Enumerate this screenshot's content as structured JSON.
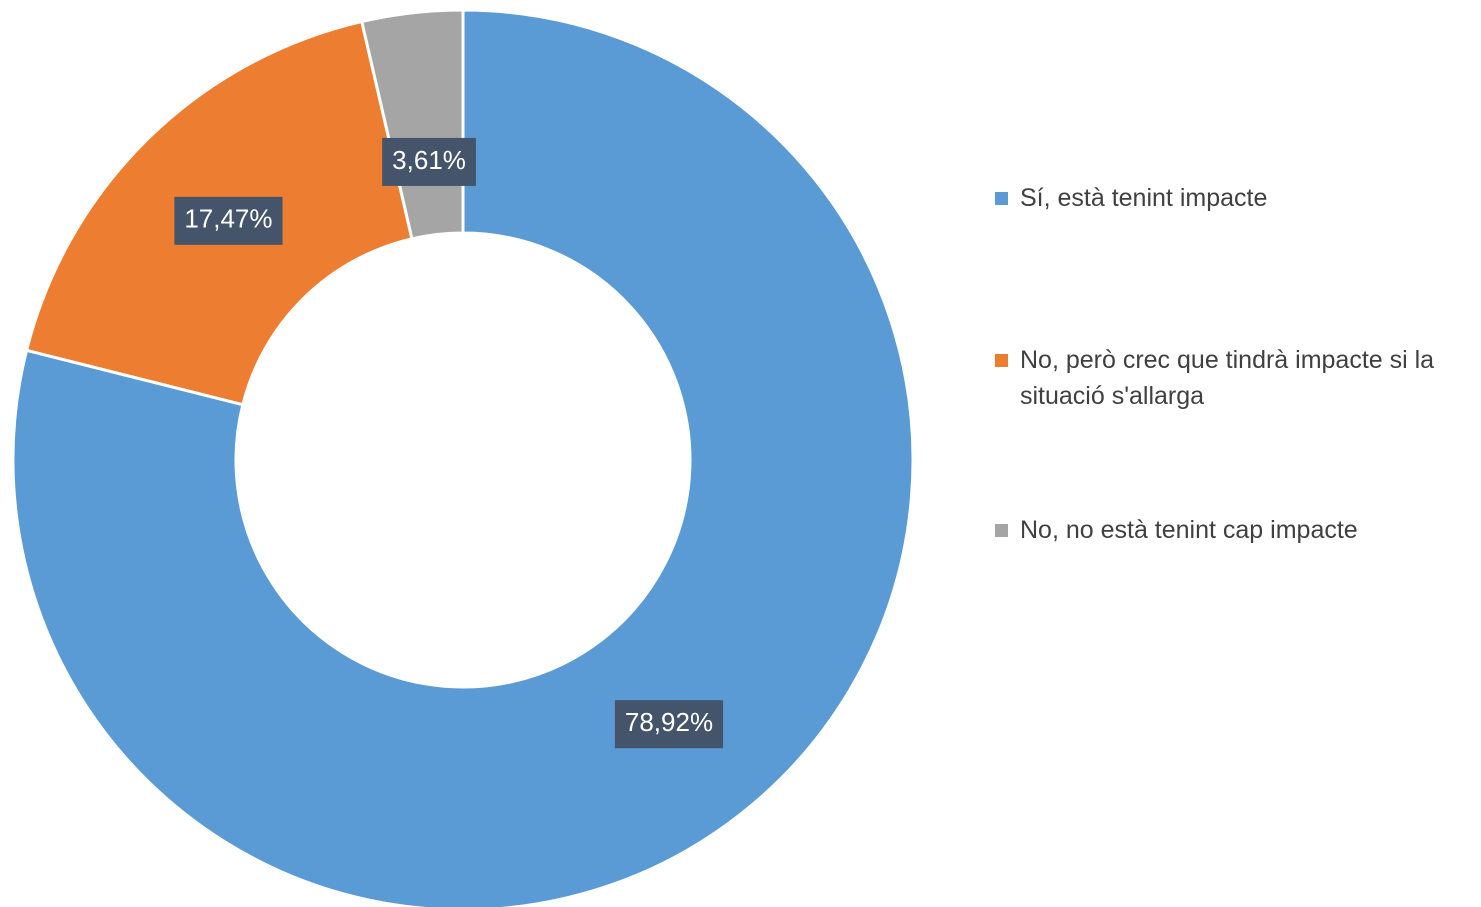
{
  "chart_data": {
    "type": "donut",
    "categories": [
      "Sí, està tenint impacte",
      "No, però crec que tindrà impacte si la situació s'allarga",
      "No, no està tenint cap impacte"
    ],
    "values": [
      78.92,
      17.47,
      3.61
    ],
    "value_labels": [
      "78,92%",
      "17,47%",
      "3,61%"
    ],
    "colors": [
      "#5b9bd5",
      "#ed7d31",
      "#a5a5a5"
    ],
    "legend": "right"
  }
}
